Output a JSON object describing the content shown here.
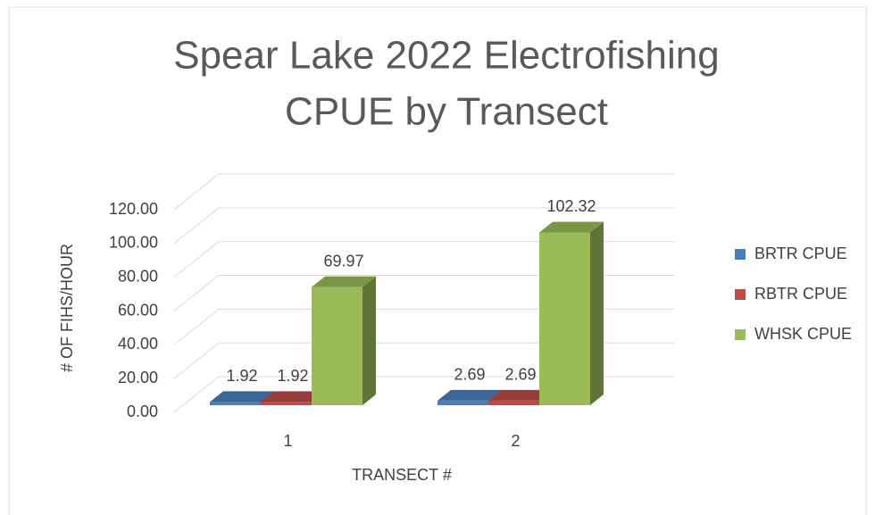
{
  "chart_data": {
    "type": "bar3d",
    "title": [
      "Spear Lake 2022 Electrofishing",
      "CPUE by Transect"
    ],
    "x_label": "TRANSECT #",
    "y_label": "# OF FIHS/HOUR",
    "categories": [
      "1",
      "2"
    ],
    "series": [
      {
        "name": "BRTR CPUE",
        "color": "#4a7ebb",
        "values": [
          1.92,
          2.69
        ]
      },
      {
        "name": "RBTR CPUE",
        "color": "#be4b48",
        "values": [
          1.92,
          2.69
        ]
      },
      {
        "name": "WHSK CPUE",
        "color": "#9bbb59",
        "values": [
          69.97,
          102.32
        ]
      }
    ],
    "ylim": [
      0,
      120
    ],
    "yticks": [
      {
        "value": 0,
        "label": "0.00"
      },
      {
        "value": 20,
        "label": "20.00"
      },
      {
        "value": 40,
        "label": "40.00"
      },
      {
        "value": 60,
        "label": "60.00"
      },
      {
        "value": 80,
        "label": "80.00"
      },
      {
        "value": 100,
        "label": "100.00"
      },
      {
        "value": 120,
        "label": "120.00"
      }
    ],
    "grid": true,
    "legend": "right"
  }
}
